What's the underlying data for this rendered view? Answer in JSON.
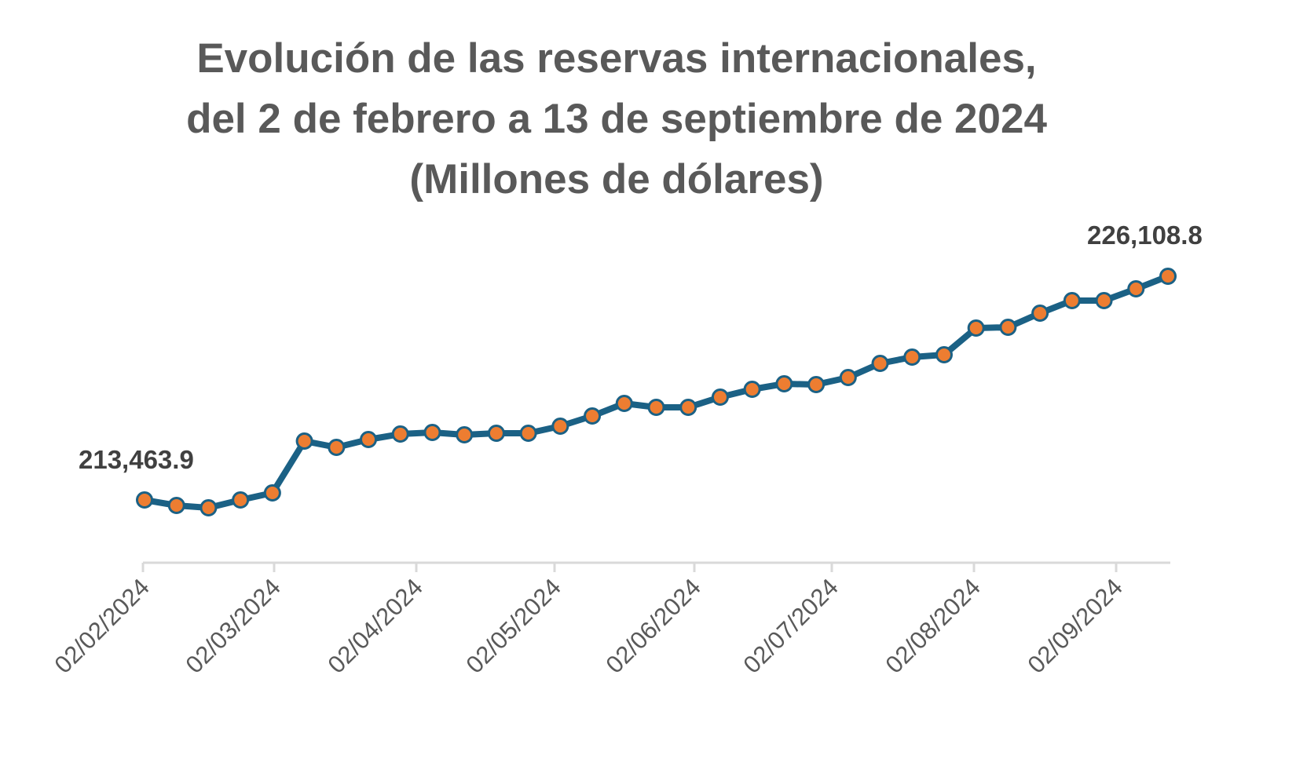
{
  "chart_data": {
    "type": "line",
    "title": "Evolución de las reservas internacionales, del 2 de febrero a 13 de septiembre de 2024 (Millones de dólares)",
    "title_lines": [
      "Evolución de las reservas internacionales,",
      "del 2 de febrero a 13 de septiembre de 2024",
      "(Millones de dólares)"
    ],
    "xlabel": "",
    "ylabel": "Millones de dólares",
    "grid": false,
    "legend": "none",
    "x_tick_labels": [
      "02/02/2024",
      "02/03/2024",
      "02/04/2024",
      "02/05/2024",
      "02/06/2024",
      "02/07/2024",
      "02/08/2024",
      "02/09/2024"
    ],
    "x": [
      "02/02/2024",
      "09/02/2024",
      "16/02/2024",
      "23/02/2024",
      "01/03/2024",
      "08/03/2024",
      "15/03/2024",
      "22/03/2024",
      "27/03/2024",
      "05/04/2024",
      "12/04/2024",
      "19/04/2024",
      "26/04/2024",
      "03/05/2024",
      "10/05/2024",
      "17/05/2024",
      "24/05/2024",
      "31/05/2024",
      "07/06/2024",
      "14/06/2024",
      "21/06/2024",
      "28/06/2024",
      "05/07/2024",
      "12/07/2024",
      "19/07/2024",
      "26/07/2024",
      "02/08/2024",
      "09/08/2024",
      "16/08/2024",
      "23/08/2024",
      "30/08/2024",
      "06/09/2024",
      "13/09/2024"
    ],
    "series": [
      {
        "name": "Reservas internacionales",
        "values": [
          213463.9,
          213153.3,
          213020.2,
          213463.9,
          213863.2,
          216791.7,
          216436.7,
          216880.4,
          217191.0,
          217279.7,
          217146.6,
          217235.4,
          217235.4,
          217634.7,
          218211.5,
          218921.4,
          218699.6,
          218699.6,
          219276.4,
          219720.1,
          220030.7,
          219986.3,
          220385.6,
          221184.3,
          221539.3,
          221672.4,
          223181.0,
          223225.4,
          224024.1,
          224734.0,
          224734.0,
          225399.5,
          226108.8
        ]
      }
    ],
    "data_labels": [
      {
        "index": 0,
        "text": "213,463.9"
      },
      {
        "index": 32,
        "text": "226,108.8"
      }
    ],
    "colors": {
      "line": "#1b6185",
      "marker_fill": "#ed7d31",
      "marker_edge": "#1b6185",
      "axis": "#d9d9d9",
      "title": "#595959",
      "labels": "#404040"
    }
  }
}
